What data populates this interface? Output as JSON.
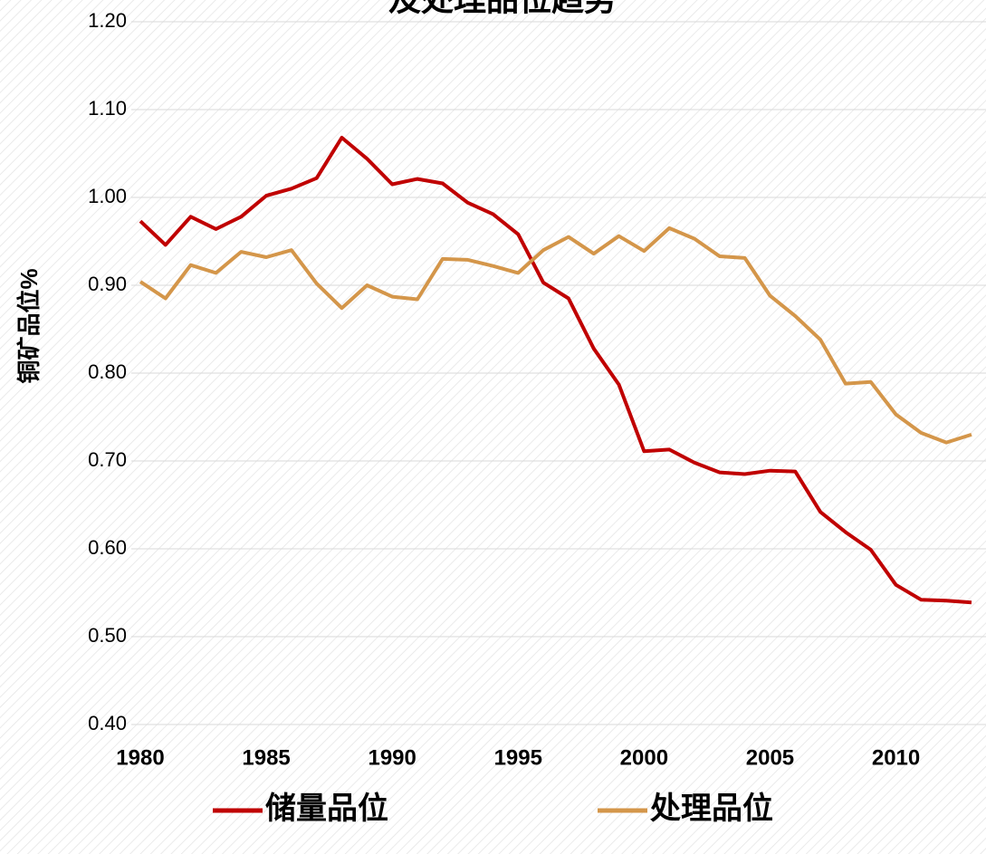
{
  "chart_data": {
    "type": "line",
    "title": "及处理品位趋势",
    "y_label": "铜矿品位%",
    "x": [
      1980,
      1981,
      1982,
      1983,
      1984,
      1985,
      1986,
      1987,
      1988,
      1989,
      1990,
      1991,
      1992,
      1993,
      1994,
      1995,
      1996,
      1997,
      1998,
      1999,
      2000,
      2001,
      2002,
      2003,
      2004,
      2005,
      2006,
      2007,
      2008,
      2009,
      2010,
      2011,
      2012,
      2013
    ],
    "series": [
      {
        "name": "储量品位",
        "color": "#c00000",
        "values": [
          0.973,
          0.946,
          0.978,
          0.964,
          0.978,
          1.002,
          1.01,
          1.022,
          1.068,
          1.044,
          1.015,
          1.021,
          1.016,
          0.994,
          0.981,
          0.958,
          0.903,
          0.885,
          0.828,
          0.787,
          0.711,
          0.713,
          0.698,
          0.687,
          0.685,
          0.689,
          0.688,
          0.642,
          0.619,
          0.599,
          0.559,
          0.542,
          0.541,
          0.539
        ]
      },
      {
        "name": "处理品位",
        "color": "#d4964a",
        "values": [
          0.904,
          0.885,
          0.923,
          0.914,
          0.938,
          0.932,
          0.94,
          0.902,
          0.874,
          0.9,
          0.887,
          0.884,
          0.93,
          0.929,
          0.922,
          0.914,
          0.94,
          0.955,
          0.936,
          0.956,
          0.939,
          0.965,
          0.953,
          0.933,
          0.931,
          0.888,
          0.865,
          0.838,
          0.788,
          0.79,
          0.753,
          0.732,
          0.721,
          0.73
        ]
      }
    ],
    "xlim": [
      1980,
      2013
    ],
    "xticks": [
      1980,
      1985,
      1990,
      1995,
      2000,
      2005,
      2010
    ],
    "ylim": [
      0.4,
      1.2
    ],
    "yticks": [
      {
        "value": 0.4,
        "label": "0.40"
      },
      {
        "value": 0.5,
        "label": "0.50"
      },
      {
        "value": 0.6,
        "label": "0.60"
      },
      {
        "value": 0.7,
        "label": "0.70"
      },
      {
        "value": 0.8,
        "label": "0.80"
      },
      {
        "value": 0.9,
        "label": "0.90"
      },
      {
        "value": 1.0,
        "label": "1.00"
      },
      {
        "value": 1.1,
        "label": "1.10"
      },
      {
        "value": 1.2,
        "label": "1.20"
      }
    ],
    "grid": true,
    "legend": "bottom"
  }
}
